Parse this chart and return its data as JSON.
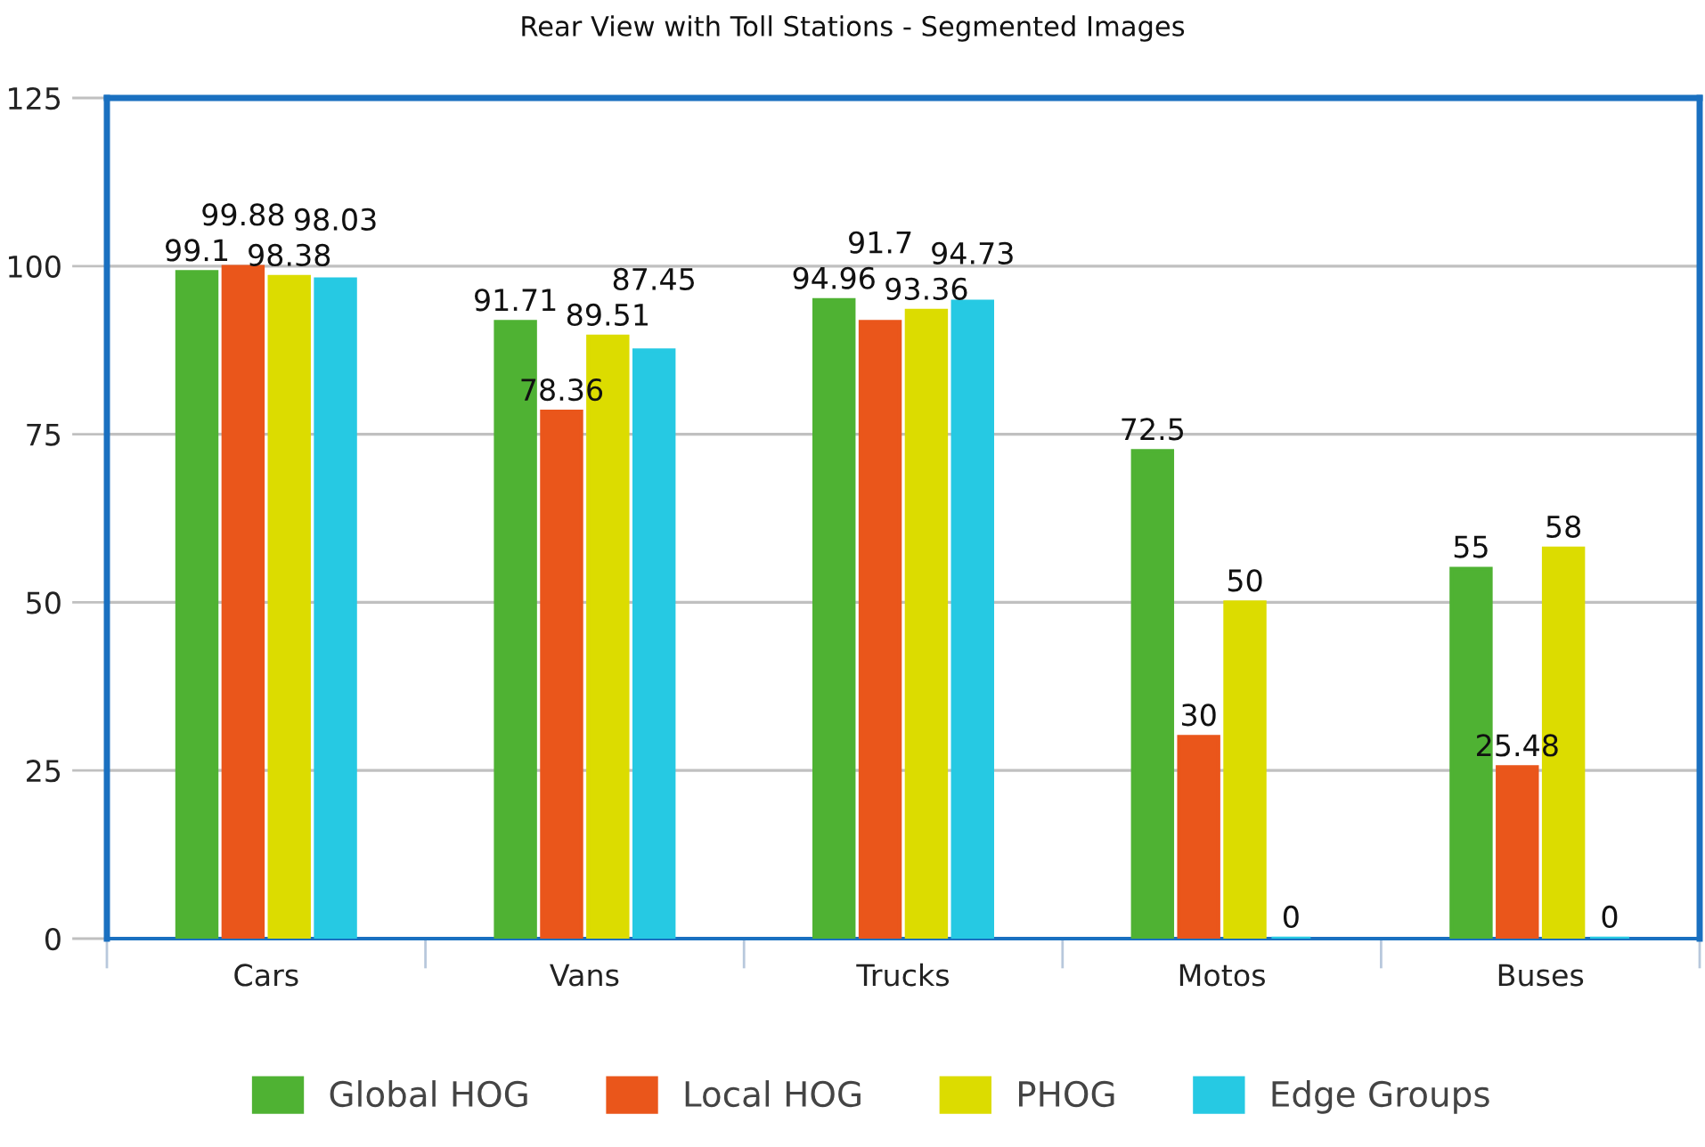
{
  "chart_data": {
    "type": "bar",
    "title": "Rear View with Toll Stations - Segmented Images",
    "categories": [
      "Cars",
      "Vans",
      "Trucks",
      "Motos",
      "Buses"
    ],
    "series": [
      {
        "name": "Global HOG",
        "color": "#4fb233",
        "values": [
          99.1,
          91.71,
          94.96,
          72.5,
          55
        ]
      },
      {
        "name": "Local HOG",
        "color": "#ea561b",
        "values": [
          99.88,
          78.36,
          91.7,
          30,
          25.48
        ]
      },
      {
        "name": "PHOG",
        "color": "#dcdc00",
        "values": [
          98.38,
          89.51,
          93.36,
          50,
          58
        ]
      },
      {
        "name": "Edge Groups",
        "color": "#26c9e3",
        "values": [
          98.03,
          87.45,
          94.73,
          0,
          0
        ]
      }
    ],
    "ylim": [
      0,
      125
    ],
    "yticks": [
      0,
      25,
      50,
      75,
      100,
      125
    ],
    "grid": "y",
    "legend": "bottom",
    "data_labels": true
  }
}
